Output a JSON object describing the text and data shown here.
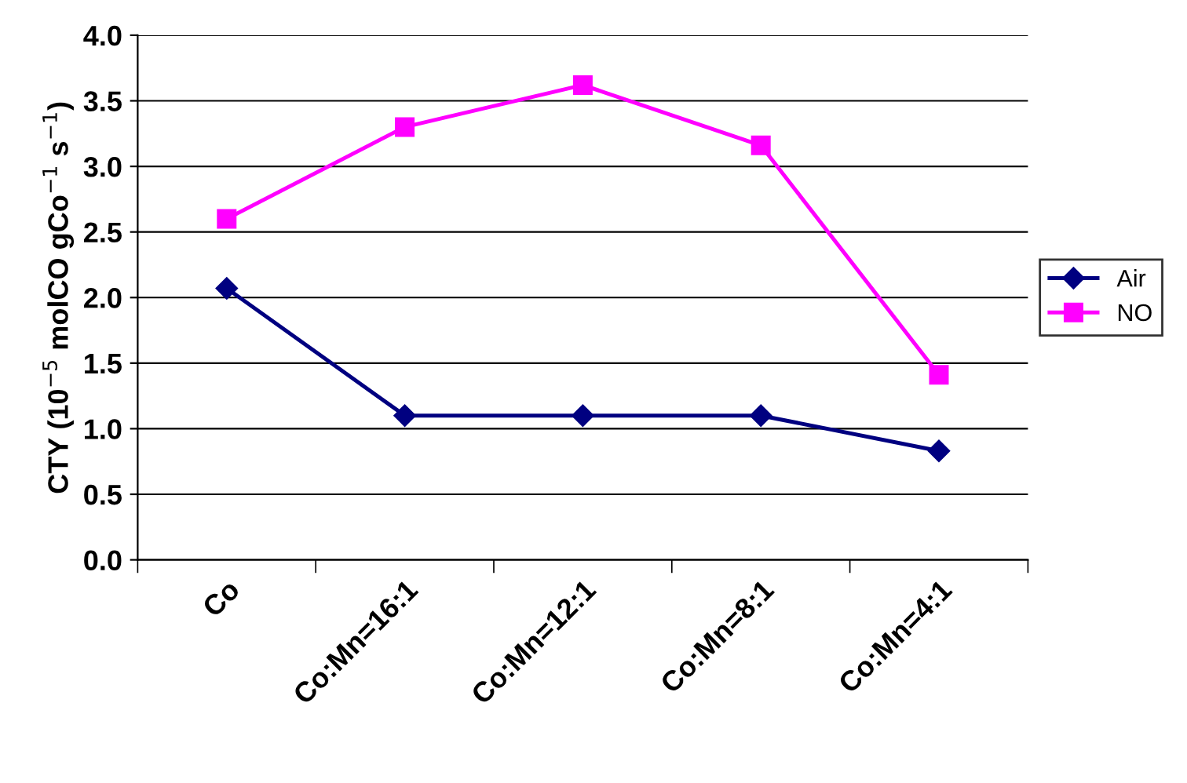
{
  "chart_data": {
    "type": "line",
    "ylabel": "CTY (10$^{−5}$ molCO gCo$^{−1}$ s$^{−1}$)",
    "categories": [
      "Co",
      "Co:Mn=16:1",
      "Co:Mn=12:1",
      "Co:Mn=8:1",
      "Co:Mn=4:1"
    ],
    "series": [
      {
        "name": "Air",
        "color": "#000080",
        "marker": "diamond",
        "values": [
          2.07,
          1.1,
          1.1,
          1.1,
          0.83
        ]
      },
      {
        "name": "NO",
        "color": "#ff00ff",
        "marker": "square",
        "values": [
          2.6,
          3.3,
          3.62,
          3.16,
          1.41
        ]
      }
    ],
    "ylim": [
      0,
      4
    ],
    "yticks": [
      {
        "value": 0,
        "label": "0.0"
      },
      {
        "value": 0.5,
        "label": "0.5"
      },
      {
        "value": 1,
        "label": "1.0"
      },
      {
        "value": 1.5,
        "label": "1.5"
      },
      {
        "value": 2,
        "label": "2.0"
      },
      {
        "value": 2.5,
        "label": "2.5"
      },
      {
        "value": 3,
        "label": "3.0"
      },
      {
        "value": 3.5,
        "label": "3.5"
      },
      {
        "value": 4,
        "label": "4.0"
      }
    ],
    "grid": "y",
    "legend": "right",
    "line_style": "solid"
  }
}
